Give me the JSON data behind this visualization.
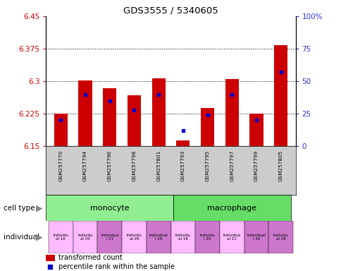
{
  "title": "GDS3555 / 5340605",
  "samples": [
    "GSM257770",
    "GSM257794",
    "GSM257796",
    "GSM257798",
    "GSM257801",
    "GSM257793",
    "GSM257795",
    "GSM257797",
    "GSM257799",
    "GSM257805"
  ],
  "red_values": [
    6.225,
    6.302,
    6.284,
    6.268,
    6.307,
    6.163,
    6.238,
    6.305,
    6.225,
    6.383
  ],
  "blue_pct": [
    20,
    40,
    35,
    28,
    40,
    12,
    24,
    40,
    20,
    57
  ],
  "ymin": 6.15,
  "ymax": 6.45,
  "yticks": [
    6.15,
    6.225,
    6.3,
    6.375,
    6.45
  ],
  "ytick_labels": [
    "6.15",
    "6.225",
    "6.3",
    "6.375",
    "6.45"
  ],
  "y2min": 0,
  "y2max": 100,
  "y2ticks": [
    0,
    25,
    50,
    75,
    100
  ],
  "y2tick_labels": [
    "0",
    "25",
    "50",
    "75",
    "100%"
  ],
  "bar_color": "#cc0000",
  "blue_color": "#0000cc",
  "bar_width": 0.55,
  "ind_colors": [
    "#ffbbff",
    "#ffbbff",
    "#cc77cc",
    "#ffbbff",
    "#cc77cc",
    "#ffbbff",
    "#cc77cc",
    "#ffbbff",
    "#cc77cc",
    "#cc77cc"
  ],
  "ind_labels": [
    "individu\nal 16",
    "individu\nal 20",
    "individua\nl 21",
    "individu\nal 26",
    "individual\nl 28",
    "individu\nal 16",
    "individu\nl 20",
    "individua\nal 21",
    "individual\nl 26",
    "individu\nal 28"
  ],
  "legend_items": [
    {
      "label": "transformed count",
      "color": "#cc0000"
    },
    {
      "label": "percentile rank within the sample",
      "color": "#0000cc"
    }
  ],
  "left_color": "#cc0000",
  "right_color": "#3333cc"
}
